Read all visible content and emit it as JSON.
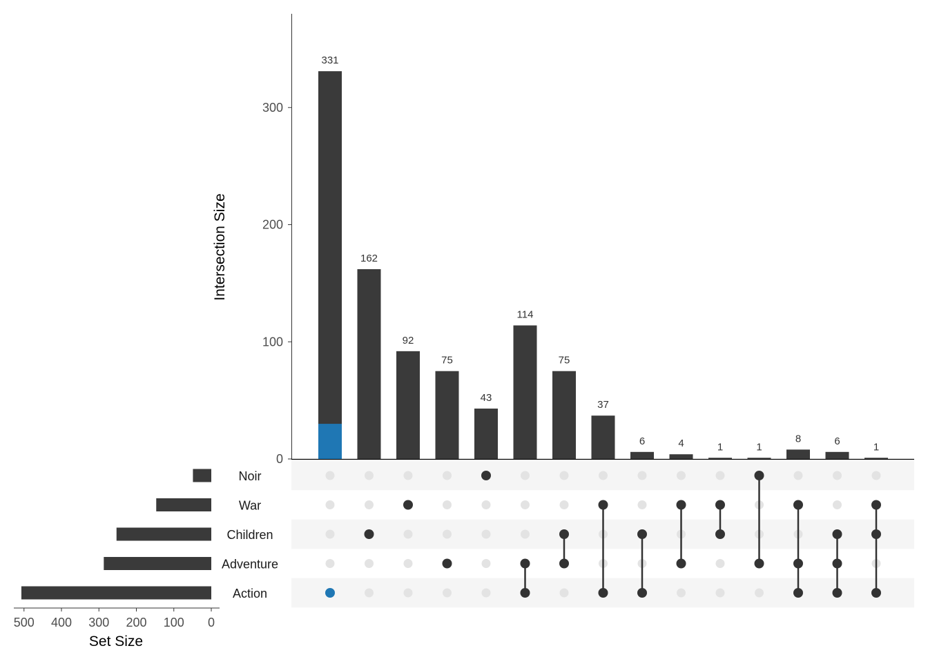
{
  "chart_data": {
    "type": "upset",
    "colors": {
      "bar": "#3a3a3a",
      "highlight": "#1f77b4",
      "dot_active": "#333333",
      "dot_inactive": "#e3e3e3",
      "row_stripe": "#f5f5f5"
    },
    "sets": [
      {
        "name": "Noir",
        "size": 49
      },
      {
        "name": "War",
        "size": 147
      },
      {
        "name": "Children",
        "size": 253
      },
      {
        "name": "Adventure",
        "size": 287
      },
      {
        "name": "Action",
        "size": 507
      }
    ],
    "intersections": [
      {
        "members": [
          "Action"
        ],
        "value": 331,
        "highlight_value": 30
      },
      {
        "members": [
          "Children"
        ],
        "value": 162
      },
      {
        "members": [
          "War"
        ],
        "value": 92
      },
      {
        "members": [
          "Adventure"
        ],
        "value": 75
      },
      {
        "members": [
          "Noir"
        ],
        "value": 43
      },
      {
        "members": [
          "Adventure",
          "Action"
        ],
        "value": 114
      },
      {
        "members": [
          "Children",
          "Adventure"
        ],
        "value": 75
      },
      {
        "members": [
          "War",
          "Action"
        ],
        "value": 37
      },
      {
        "members": [
          "Children",
          "Action"
        ],
        "value": 6
      },
      {
        "members": [
          "War",
          "Adventure"
        ],
        "value": 4
      },
      {
        "members": [
          "War",
          "Children"
        ],
        "value": 1
      },
      {
        "members": [
          "Noir",
          "Adventure"
        ],
        "value": 1
      },
      {
        "members": [
          "War",
          "Adventure",
          "Action"
        ],
        "value": 8
      },
      {
        "members": [
          "Children",
          "Adventure",
          "Action"
        ],
        "value": 6
      },
      {
        "members": [
          "War",
          "Children",
          "Action"
        ],
        "value": 1
      }
    ],
    "highlight_set": "Action",
    "intersection_axis": {
      "label": "Intersection Size",
      "ylim": [
        0,
        380
      ],
      "ticks": [
        0,
        100,
        200,
        300
      ]
    },
    "set_size_axis": {
      "label": "Set Size",
      "xlim": [
        0,
        550
      ],
      "ticks": [
        500,
        400,
        300,
        200,
        100,
        0
      ]
    }
  }
}
